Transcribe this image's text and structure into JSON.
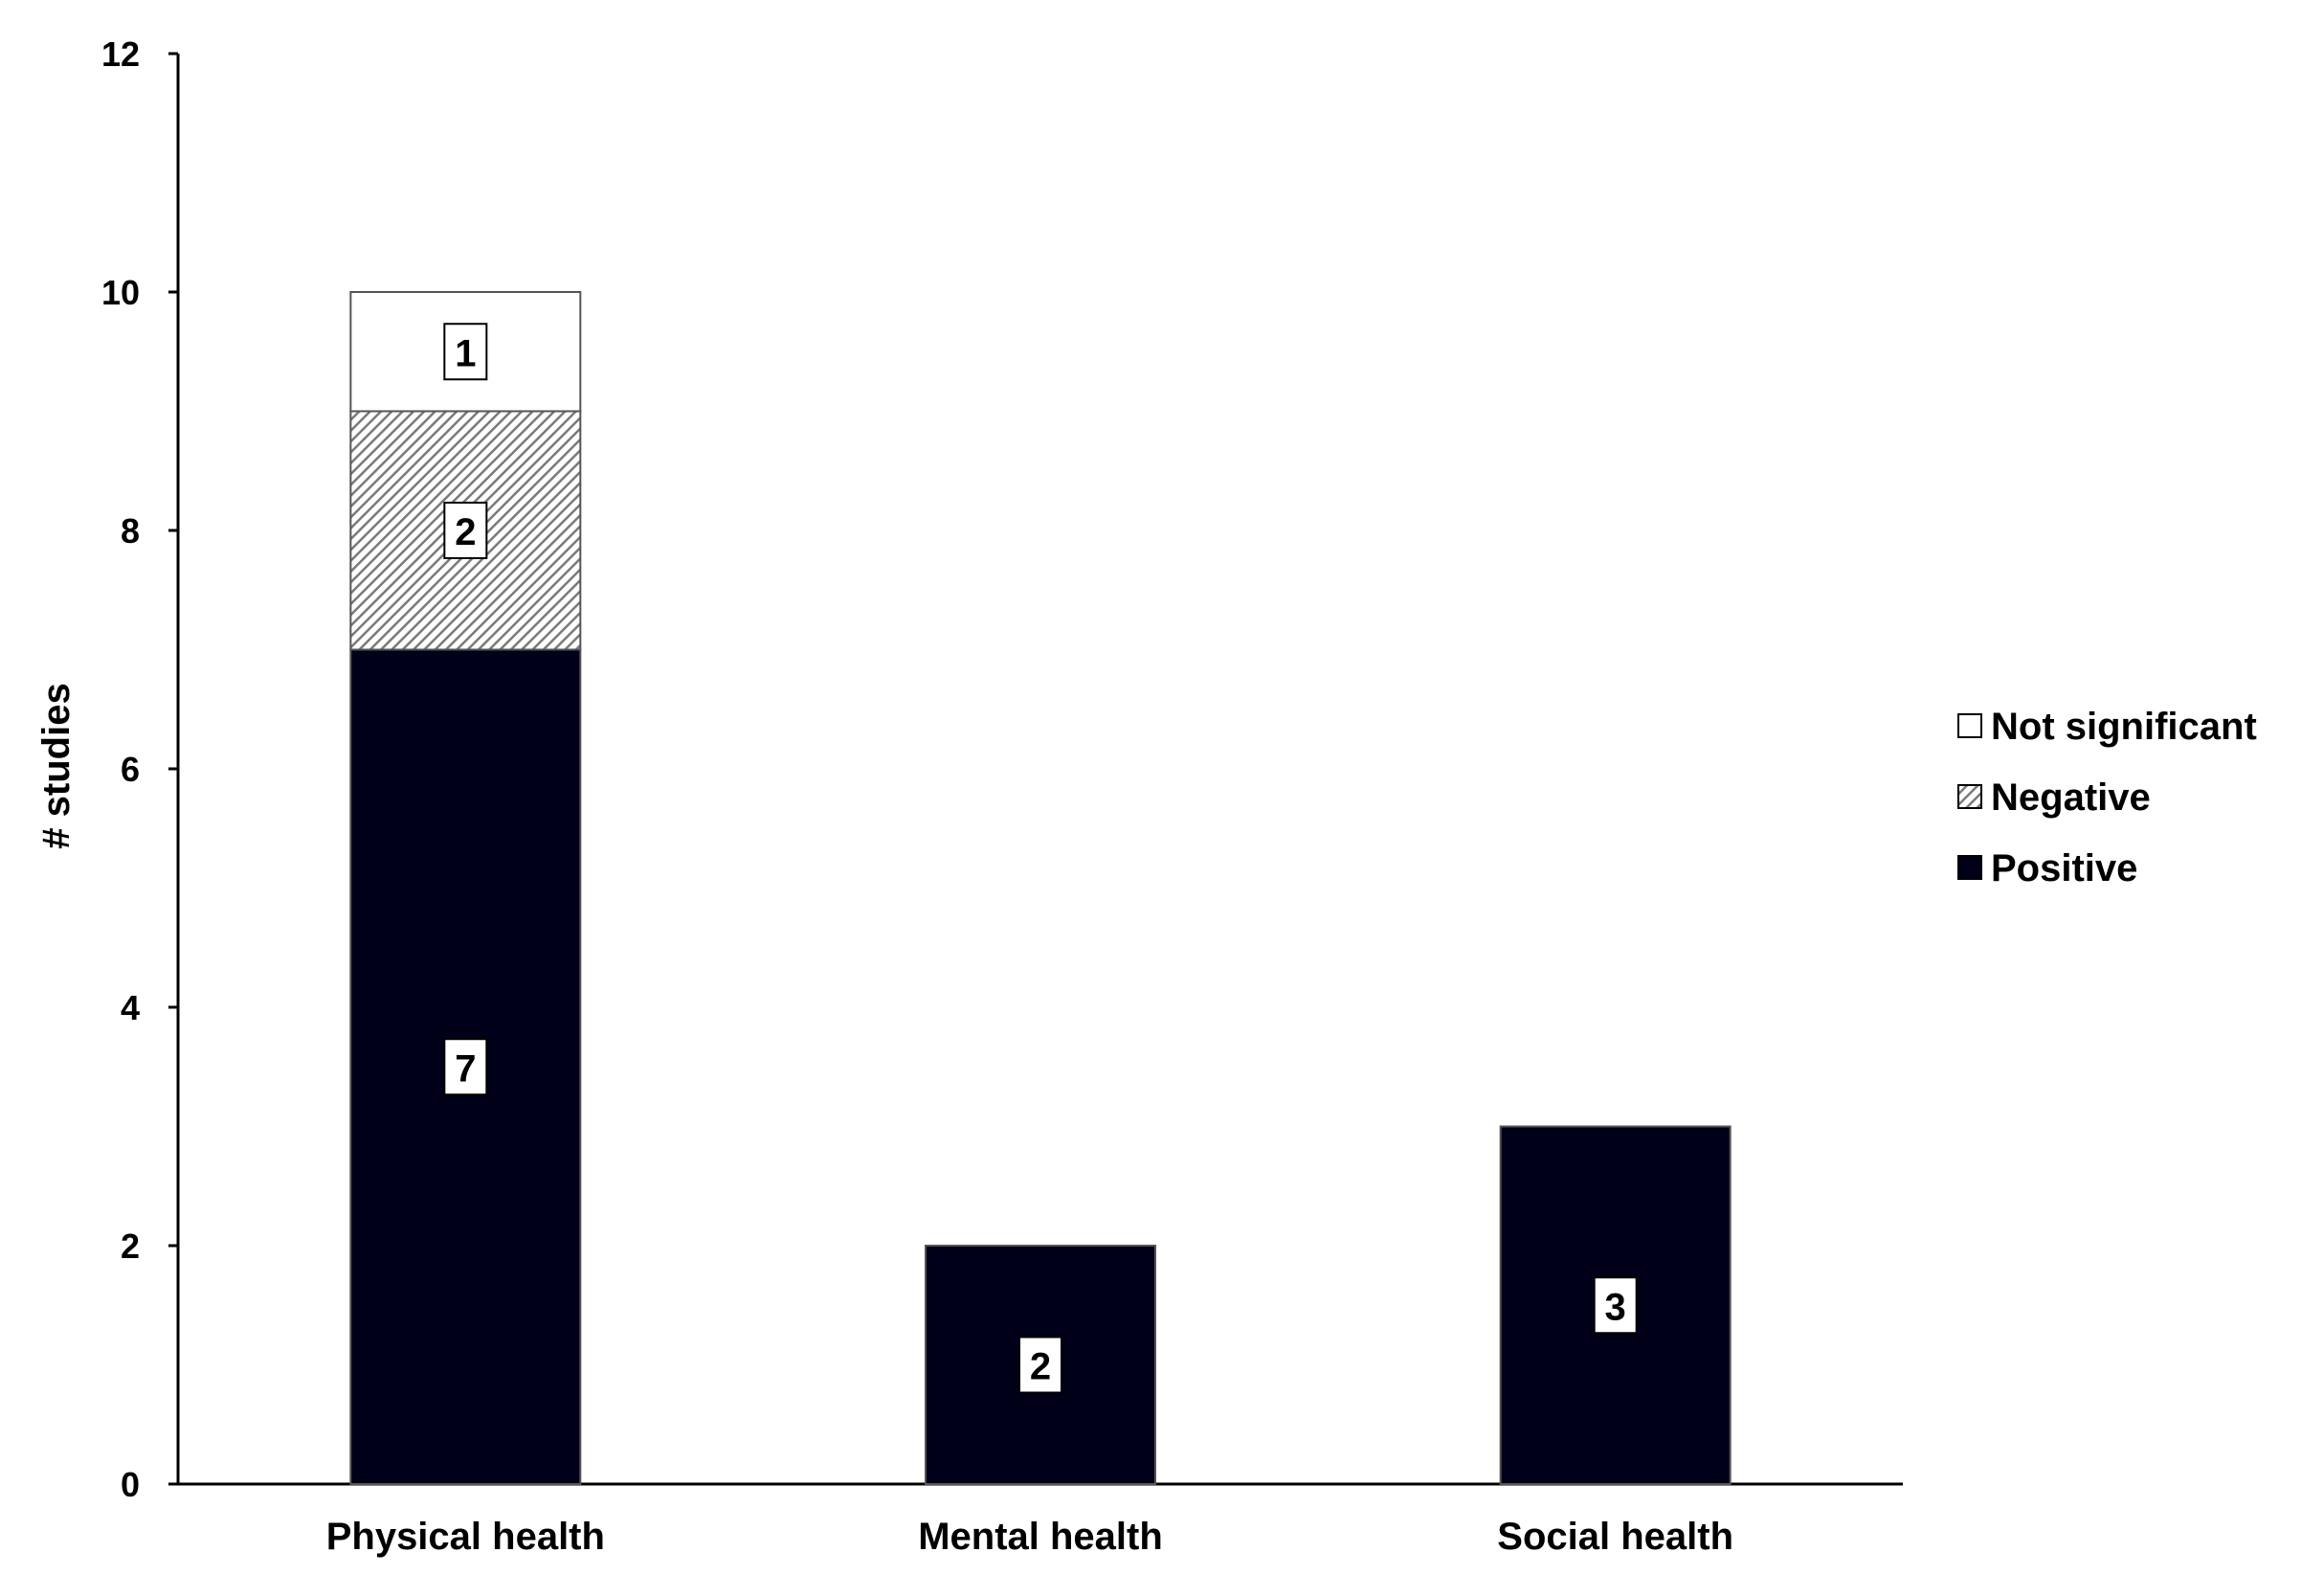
{
  "chart_data": {
    "type": "bar",
    "stacked": true,
    "title": "",
    "xlabel": "",
    "ylabel": "# studies",
    "ylim": [
      0,
      12
    ],
    "yticks": [
      0,
      2,
      4,
      6,
      8,
      10,
      12
    ],
    "grid": false,
    "legend_position": "right",
    "categories": [
      "Physical health",
      "Mental health",
      "Social health"
    ],
    "series": [
      {
        "name": "Positive",
        "values": [
          7,
          2,
          3
        ],
        "color": "#000018",
        "pattern": "solid"
      },
      {
        "name": "Negative",
        "values": [
          2,
          0,
          0
        ],
        "color": "#8c8c8c",
        "pattern": "diagonal-hatch"
      },
      {
        "name": "Not significant",
        "values": [
          1,
          0,
          0
        ],
        "color": "#ffffff",
        "pattern": "solid"
      }
    ],
    "legend_order": [
      "Not significant",
      "Negative",
      "Positive"
    ]
  }
}
